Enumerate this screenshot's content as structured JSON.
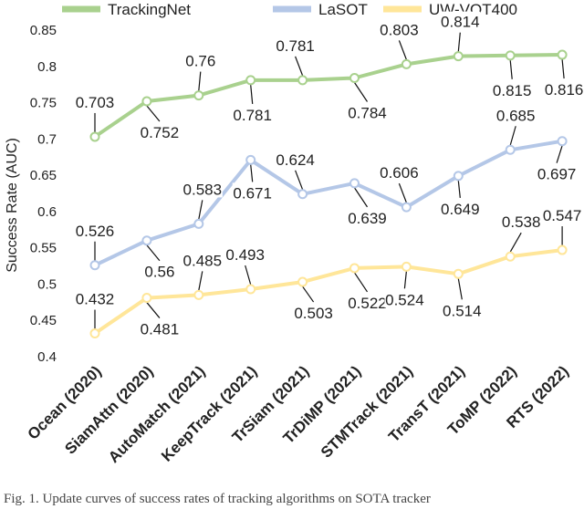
{
  "chart_data": {
    "type": "line",
    "title": "",
    "xlabel": "",
    "ylabel": "Success Rate (AUC)",
    "ylim": [
      0.4,
      0.85
    ],
    "yticks": [
      "0.4",
      "0.45",
      "0.5",
      "0.55",
      "0.6",
      "0.65",
      "0.7",
      "0.75",
      "0.8",
      "0.85"
    ],
    "grid": false,
    "legend_position": "top",
    "categories": [
      "Ocean (2020)",
      "SiamAttn (2020)",
      "AutoMatch (2021)",
      "KeepTrack (2021)",
      "TrSiam (2021)",
      "TrDiMP (2021)",
      "STMTrack (2021)",
      "TransT (2021)",
      "ToMP (2022)",
      "RTS (2022)"
    ],
    "series": [
      {
        "name": "TrackingNet",
        "color": "#a9d18e",
        "values": [
          0.703,
          0.752,
          0.76,
          0.781,
          0.781,
          0.784,
          0.803,
          0.814,
          0.815,
          0.816
        ],
        "labels": [
          "0.703",
          "0.752",
          "0.76",
          "0.781",
          "0.781",
          "0.784",
          "0.803",
          "0.814",
          "0.815",
          "0.816"
        ]
      },
      {
        "name": "LaSOT",
        "color": "#b4c7e7",
        "values": [
          0.526,
          0.56,
          0.583,
          0.671,
          0.624,
          0.639,
          0.606,
          0.649,
          0.685,
          0.697
        ],
        "labels": [
          "0.526",
          "0.56",
          "0.583",
          "0.671",
          "0.624",
          "0.639",
          "0.606",
          "0.649",
          "0.685",
          "0.697"
        ]
      },
      {
        "name": "UW-VOT400",
        "color": "#ffe699",
        "values": [
          0.432,
          0.481,
          0.485,
          0.493,
          0.503,
          0.522,
          0.524,
          0.514,
          0.538,
          0.547
        ],
        "labels": [
          "0.432",
          "0.481",
          "0.485",
          "0.493",
          "0.503",
          "0.522",
          "0.524",
          "0.514",
          "0.538",
          "0.547"
        ]
      }
    ]
  },
  "caption": "Fig. 1. Update curves of success rates of tracking algorithms on SOTA tracker"
}
